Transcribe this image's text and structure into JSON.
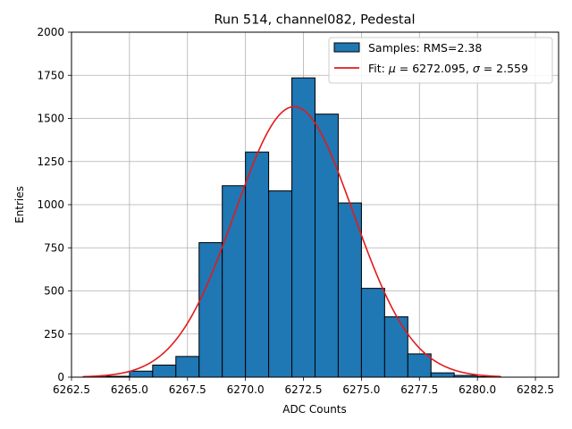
{
  "chart_data": {
    "type": "bar",
    "title": "Run 514, channel082, Pedestal",
    "xlabel": "ADC Counts",
    "ylabel": "Entries",
    "xlim": [
      6262.5,
      6283.5
    ],
    "ylim": [
      0,
      2000
    ],
    "x_ticks": [
      6262.5,
      6265.0,
      6267.5,
      6270.0,
      6272.5,
      6275.0,
      6277.5,
      6280.0,
      6282.5
    ],
    "x_tick_labels": [
      "6262.5",
      "6265.0",
      "6267.5",
      "6270.0",
      "6272.5",
      "6275.0",
      "6277.5",
      "6280.0",
      "6282.5"
    ],
    "y_ticks": [
      0,
      250,
      500,
      750,
      1000,
      1250,
      1500,
      1750,
      2000
    ],
    "y_tick_labels": [
      "0",
      "250",
      "500",
      "750",
      "1000",
      "1250",
      "1500",
      "1750",
      "2000"
    ],
    "grid": true,
    "legend_position": "upper-right",
    "histogram": {
      "name": "Samples: RMS=2.38",
      "color": "#1f77b4",
      "edge_color": "#000000",
      "bin_edges": [
        6263,
        6264,
        6265,
        6266,
        6267,
        6268,
        6269,
        6270,
        6271,
        6272,
        6273,
        6274,
        6275,
        6276,
        6277,
        6278,
        6279,
        6280,
        6281
      ],
      "counts": [
        2,
        5,
        35,
        70,
        120,
        780,
        1110,
        1305,
        1080,
        1735,
        1525,
        1010,
        515,
        350,
        135,
        25,
        10,
        3
      ]
    },
    "fit": {
      "name": "Fit: μ = 6272.095, σ = 2.559",
      "label_prefix": "Fit: ",
      "mu_symbol": "μ",
      "mu_text": " = 6272.095, ",
      "sigma_symbol": "σ",
      "sigma_text": " = 2.559",
      "color": "#e31a1c",
      "mu": 6272.095,
      "sigma": 2.559,
      "amplitude": 1568,
      "x_range": [
        6263,
        6281
      ]
    }
  }
}
